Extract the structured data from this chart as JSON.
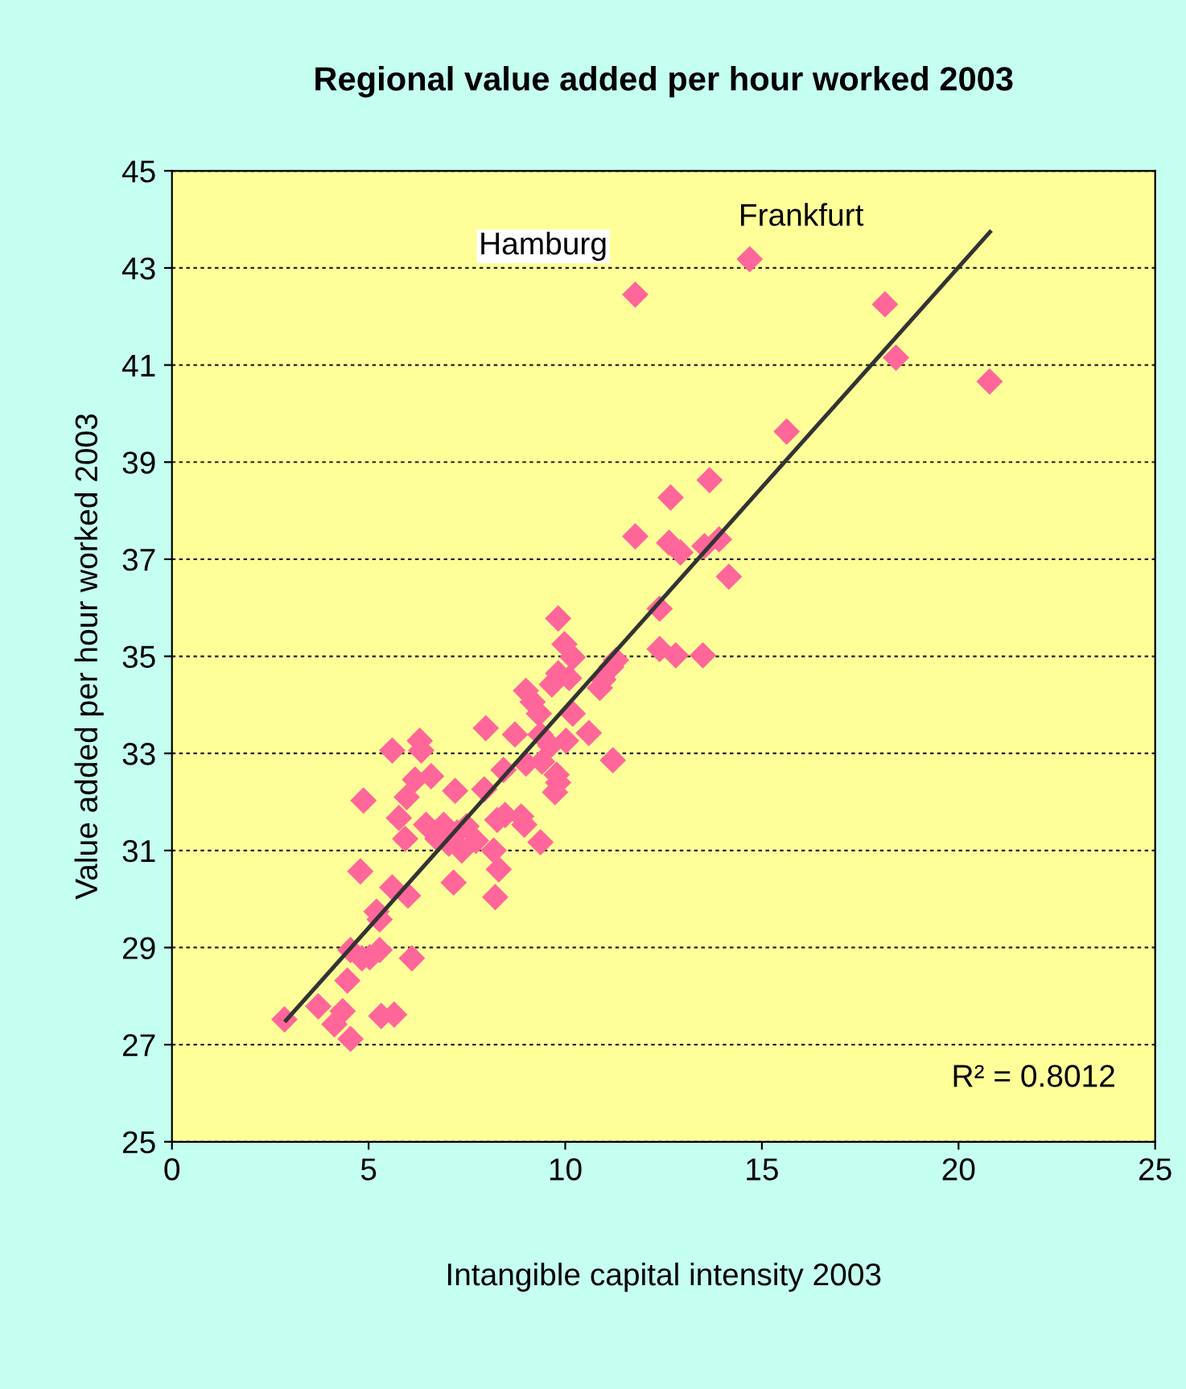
{
  "chart_data": {
    "type": "scatter",
    "title": "Regional value added per hour worked 2003",
    "xlabel": "Intangible capital intensity 2003",
    "ylabel": "Value added per hour worked 2003",
    "xlim": [
      0,
      25
    ],
    "xticks": [
      0,
      5,
      10,
      15,
      20,
      25
    ],
    "ylim": [
      25,
      45
    ],
    "yticks": [
      25,
      27,
      29,
      31,
      33,
      35,
      37,
      39,
      41,
      43,
      45
    ],
    "grid": "y",
    "legend": false,
    "marker": "diamond",
    "series": [
      {
        "color": "#ff6699",
        "x": [
          2.86,
          3.72,
          4.34,
          4.13,
          4.54,
          4.46,
          4.54,
          4.83,
          5.03,
          5.28,
          5.28,
          5.2,
          5.32,
          5.65,
          6.1,
          4.79,
          4.87,
          5.6,
          6.0,
          5.93,
          5.77,
          5.6,
          5.97,
          6.18,
          6.3,
          6.34,
          6.59,
          6.46,
          6.75,
          6.91,
          7.04,
          7.16,
          7.2,
          7.25,
          7.37,
          7.49,
          7.73,
          7.94,
          7.98,
          8.18,
          8.27,
          8.31,
          8.22,
          8.43,
          8.47,
          8.72,
          8.88,
          8.96,
          9.0,
          9.0,
          9.17,
          9.33,
          9.37,
          9.37,
          9.41,
          9.62,
          9.66,
          9.74,
          9.78,
          9.82,
          9.82,
          9.82,
          9.98,
          10.02,
          10.1,
          10.19,
          10.19,
          10.6,
          10.88,
          10.97,
          11.17,
          11.21,
          11.29,
          11.78,
          11.78,
          12.4,
          12.4,
          12.64,
          12.68,
          12.81,
          12.93,
          13.5,
          13.54,
          13.67,
          13.91,
          14.16,
          14.69,
          15.63,
          18.13,
          18.41,
          20.79
        ],
        "values": [
          27.52,
          27.79,
          27.69,
          27.42,
          27.12,
          28.32,
          28.95,
          28.78,
          28.8,
          28.95,
          29.58,
          29.74,
          27.59,
          27.62,
          28.78,
          30.57,
          32.03,
          30.24,
          30.07,
          31.24,
          31.67,
          33.06,
          32.1,
          32.46,
          33.26,
          33.06,
          32.53,
          31.53,
          31.24,
          31.53,
          31.14,
          30.34,
          32.23,
          31.37,
          31.0,
          31.5,
          31.2,
          32.26,
          33.52,
          31.0,
          31.63,
          30.61,
          30.04,
          32.66,
          31.73,
          33.39,
          31.7,
          31.53,
          32.79,
          34.29,
          34.06,
          33.82,
          33.39,
          31.17,
          32.83,
          33.16,
          34.42,
          32.2,
          32.56,
          32.4,
          34.65,
          35.78,
          35.25,
          33.26,
          34.55,
          34.98,
          33.82,
          33.42,
          34.35,
          34.52,
          34.78,
          32.86,
          34.92,
          42.45,
          37.47,
          35.98,
          35.15,
          37.34,
          38.27,
          35.02,
          37.14,
          35.02,
          37.27,
          38.63,
          37.41,
          36.64,
          43.18,
          39.63,
          42.25,
          41.15,
          40.66
        ]
      },
      {
        "type": "line",
        "color": "#333333",
        "marker": "none",
        "line_style": "solid",
        "x": [
          2.9,
          20.8
        ],
        "values": [
          27.5,
          43.74
        ]
      }
    ],
    "annotations": [
      {
        "text": "Hamburg",
        "x": 11.78,
        "y": 42.45
      },
      {
        "text": "Frankfurt",
        "x": 14.69,
        "y": 43.18
      },
      "R² = 0.8012"
    ]
  }
}
